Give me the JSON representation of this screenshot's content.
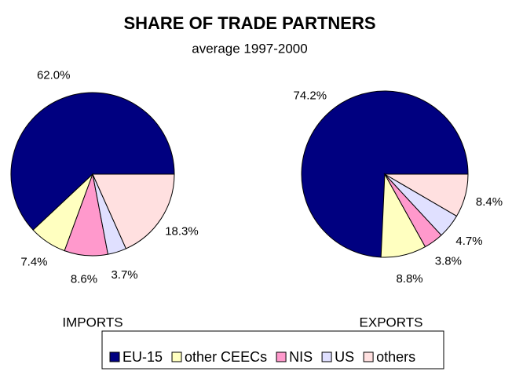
{
  "title": "SHARE OF TRADE PARTNERS",
  "subtitle": "average 1997-2000",
  "categories": [
    "EU-15",
    "other CEECs",
    "NIS",
    "US",
    "others"
  ],
  "colors": [
    "#000080",
    "#ffffc0",
    "#ff99cc",
    "#e0e0ff",
    "#ffe0e0"
  ],
  "chart_data": [
    {
      "type": "pie",
      "label": "IMPORTS",
      "values": [
        62.0,
        7.4,
        8.6,
        3.7,
        18.3
      ],
      "value_labels": [
        "62.0%",
        "7.4%",
        "8.6%",
        "3.7%",
        "18.3%"
      ]
    },
    {
      "type": "pie",
      "label": "EXPORTS",
      "values": [
        74.2,
        8.8,
        3.8,
        4.7,
        8.4
      ],
      "value_labels": [
        "74.2%",
        "8.8%",
        "3.8%",
        "4.7%",
        "8.4%"
      ]
    }
  ]
}
